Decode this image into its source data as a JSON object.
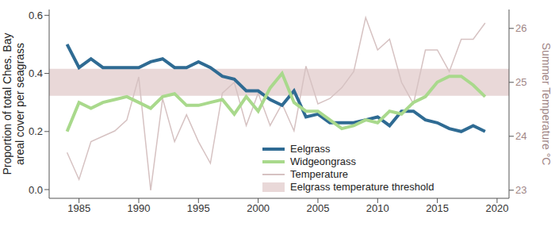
{
  "chart_data": {
    "type": "line",
    "ylabel": "Proportion of total Ches. Bay\nareal cover per seagrass",
    "y2label": "Summer Temperature °C",
    "x": [
      1984,
      1985,
      1986,
      1987,
      1988,
      1989,
      1990,
      1991,
      1992,
      1993,
      1994,
      1995,
      1996,
      1997,
      1998,
      1999,
      2000,
      2001,
      2002,
      2003,
      2004,
      2005,
      2006,
      2007,
      2008,
      2009,
      2010,
      2011,
      2012,
      2013,
      2014,
      2015,
      2016,
      2017,
      2018,
      2019
    ],
    "xlim": [
      1982.5,
      2021
    ],
    "xticks": [
      1985,
      1990,
      1995,
      2000,
      2005,
      2010,
      2015,
      2020
    ],
    "ylim": [
      -0.03,
      0.62
    ],
    "yticks": [
      {
        "value": 0,
        "label": "0.0"
      },
      0.2,
      0.4,
      0.6
    ],
    "y2lim": [
      22.85,
      26.35
    ],
    "y2ticks": [
      23,
      24,
      25,
      26
    ],
    "legend": "lower right",
    "series": [
      {
        "name": "Eelgrass",
        "color": "#2f6b93",
        "values": [
          0.5,
          0.42,
          0.45,
          0.42,
          0.42,
          0.42,
          0.42,
          0.44,
          0.45,
          0.42,
          0.42,
          0.44,
          0.42,
          0.39,
          0.38,
          0.34,
          0.34,
          0.31,
          0.29,
          0.34,
          0.25,
          0.26,
          0.23,
          0.23,
          0.23,
          0.24,
          0.25,
          0.22,
          0.27,
          0.27,
          0.24,
          0.23,
          0.21,
          0.2,
          0.22,
          0.2
        ]
      },
      {
        "name": "Widgeongrass",
        "color": "#a9d98c",
        "values": [
          0.2,
          0.3,
          0.28,
          0.3,
          0.31,
          0.32,
          0.3,
          0.28,
          0.32,
          0.33,
          0.29,
          0.29,
          0.3,
          0.31,
          0.26,
          0.32,
          0.27,
          0.35,
          0.4,
          0.3,
          0.27,
          0.27,
          0.24,
          0.21,
          0.22,
          0.24,
          0.23,
          0.27,
          0.26,
          0.3,
          0.32,
          0.37,
          0.39,
          0.39,
          0.36,
          0.32
        ]
      },
      {
        "name": "Temperature",
        "color": "#d6c2c2",
        "axis": "y2",
        "values": [
          23.7,
          23.2,
          23.9,
          24.0,
          24.1,
          24.3,
          25.1,
          23.0,
          24.7,
          23.9,
          24.4,
          23.9,
          23.5,
          24.8,
          25.0,
          24.2,
          24.8,
          24.2,
          24.6,
          24.1,
          25.3,
          24.6,
          24.7,
          24.9,
          25.2,
          26.2,
          25.6,
          25.8,
          25.0,
          24.6,
          25.6,
          25.6,
          25.2,
          25.8,
          25.8,
          26.1
        ]
      }
    ],
    "band": {
      "name": "Eelgrass temperature threshold",
      "color": "#e9d8d8",
      "axis": "y2",
      "range": [
        24.75,
        25.25
      ]
    }
  }
}
